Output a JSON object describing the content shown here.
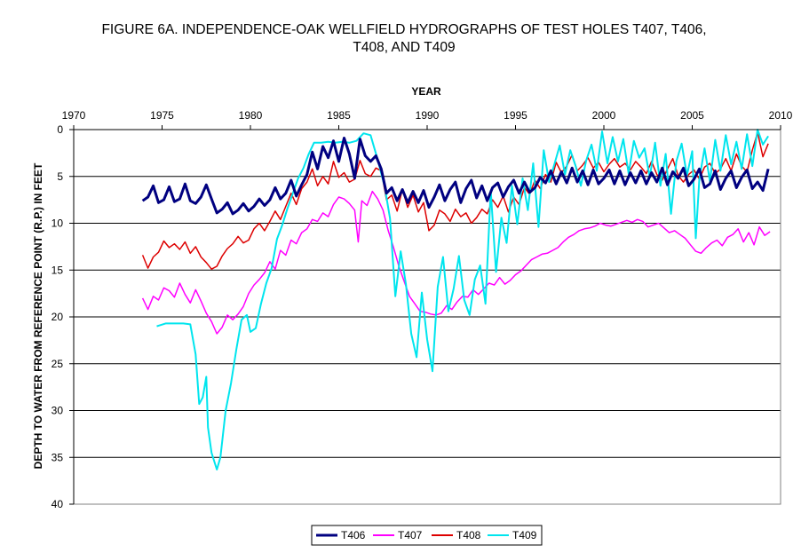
{
  "chart_data": {
    "type": "line",
    "title_lines": [
      "FIGURE 6A. INDEPENDENCE-OAK WELLFIELD HYDROGRAPHS OF TEST HOLES T407, T406,",
      "T408, AND T409"
    ],
    "xlabel": "YEAR",
    "ylabel": "DEPTH TO WATER FROM REFERENCE POINT (R.P.) IN FEET",
    "xlim": [
      1970,
      2010
    ],
    "ylim": [
      0,
      40
    ],
    "y_inverted": true,
    "x_axis_position": "top",
    "grid": "horizontal",
    "legend_position": "bottom",
    "x_ticks": [
      "1970",
      "1975",
      "1980",
      "1985",
      "1990",
      "1995",
      "2000",
      "2005",
      "2010"
    ],
    "y_ticks": [
      "0",
      "5",
      "10",
      "15",
      "20",
      "25",
      "30",
      "35",
      "40"
    ],
    "series": [
      {
        "name": "T406",
        "color": "#000080",
        "x": [
          1973.9,
          1974.2,
          1974.5,
          1974.8,
          1975.1,
          1975.4,
          1975.7,
          1976,
          1976.3,
          1976.6,
          1976.9,
          1977.2,
          1977.5,
          1977.8,
          1978.1,
          1978.4,
          1978.7,
          1979,
          1979.3,
          1979.6,
          1979.9,
          1980.2,
          1980.5,
          1980.8,
          1981.1,
          1981.4,
          1981.7,
          1982,
          1982.3,
          1982.6,
          1982.9,
          1983.2,
          1983.5,
          1983.8,
          1984.1,
          1984.4,
          1984.7,
          1985,
          1985.3,
          1985.6,
          1985.9,
          1986.2,
          1986.5,
          1986.8,
          1987.1,
          1987.4,
          1987.7,
          1988,
          1988.3,
          1988.6,
          1988.9,
          1989.2,
          1989.5,
          1989.8,
          1990.1,
          1990.4,
          1990.7,
          1991,
          1991.3,
          1991.6,
          1991.9,
          1992.2,
          1992.5,
          1992.8,
          1993.1,
          1993.4,
          1993.7,
          1994,
          1994.3,
          1994.6,
          1994.9,
          1995.2,
          1995.5,
          1995.8,
          1996.1,
          1996.4,
          1996.7,
          1997,
          1997.3,
          1997.6,
          1997.9,
          1998.2,
          1998.5,
          1998.8,
          1999.1,
          1999.4,
          1999.7,
          2000,
          2000.3,
          2000.6,
          2000.9,
          2001.2,
          2001.5,
          2001.8,
          2002.1,
          2002.4,
          2002.7,
          2003,
          2003.3,
          2003.6,
          2003.9,
          2004.2,
          2004.5,
          2004.8,
          2005.1,
          2005.4,
          2005.7,
          2006,
          2006.3,
          2006.6,
          2006.9,
          2007.2,
          2007.5,
          2007.8,
          2008.1,
          2008.4,
          2008.7,
          2009,
          2009.3
        ],
        "values": [
          7.6,
          7.2,
          6.0,
          7.8,
          7.5,
          6.1,
          7.7,
          7.4,
          5.8,
          7.6,
          7.9,
          7.2,
          5.9,
          7.4,
          8.9,
          8.5,
          7.8,
          9.0,
          8.6,
          7.9,
          8.7,
          8.2,
          7.4,
          8.1,
          7.5,
          6.2,
          7.4,
          6.8,
          5.4,
          7.1,
          5.9,
          4.8,
          2.4,
          4.2,
          1.8,
          3.0,
          1.2,
          3.4,
          0.9,
          2.6,
          5.2,
          1.0,
          2.8,
          3.4,
          2.8,
          4.2,
          6.8,
          6.2,
          7.6,
          6.4,
          7.8,
          6.6,
          7.8,
          6.5,
          8.3,
          7.2,
          5.9,
          7.6,
          6.4,
          5.6,
          7.8,
          6.3,
          5.4,
          7.3,
          6.0,
          7.6,
          6.2,
          5.7,
          7.2,
          6.1,
          5.4,
          6.8,
          5.6,
          6.7,
          6.2,
          5.1,
          5.7,
          4.4,
          5.8,
          4.5,
          5.7,
          4.1,
          5.6,
          4.4,
          5.9,
          4.3,
          5.8,
          5.2,
          4.3,
          5.8,
          4.4,
          5.9,
          4.6,
          5.7,
          4.4,
          5.8,
          4.6,
          5.6,
          4.1,
          5.9,
          4.5,
          5.2,
          4.1,
          6.0,
          5.3,
          4.2,
          6.2,
          5.8,
          4.4,
          6.4,
          5.2,
          4.4,
          6.2,
          5.1,
          4.3,
          6.3,
          5.6,
          6.5,
          4.2
        ]
      },
      {
        "name": "T407",
        "color": "#ff00ff",
        "x": [
          1973.9,
          1974.2,
          1974.5,
          1974.8,
          1975.1,
          1975.4,
          1975.7,
          1976,
          1976.3,
          1976.6,
          1976.9,
          1977.2,
          1977.5,
          1977.8,
          1978.1,
          1978.4,
          1978.7,
          1979,
          1979.3,
          1979.6,
          1979.9,
          1980.2,
          1980.5,
          1980.8,
          1981.1,
          1981.4,
          1981.7,
          1982,
          1982.3,
          1982.6,
          1982.9,
          1983.2,
          1983.5,
          1983.8,
          1984.1,
          1984.4,
          1984.7,
          1985,
          1985.3,
          1985.6,
          1985.9,
          1986.1,
          1986.3,
          1986.6,
          1986.9,
          1987.2,
          1987.5,
          1987.8,
          1988.1,
          1988.4,
          1988.7,
          1989,
          1989.3,
          1989.6,
          1989.9,
          1990.2,
          1990.5,
          1990.8,
          1991.1,
          1991.4,
          1991.7,
          1992,
          1992.3,
          1992.6,
          1992.9,
          1993.2,
          1993.5,
          1993.8,
          1994.1,
          1994.4,
          1994.7,
          1995,
          1995.3,
          1995.6,
          1995.9,
          1996.2,
          1996.5,
          1996.8,
          1997.1,
          1997.4,
          1997.7,
          1998,
          1998.3,
          1998.6,
          1998.9,
          1999.2,
          1999.5,
          1999.8,
          2000.1,
          2000.4,
          2000.7,
          2001,
          2001.3,
          2001.6,
          2001.9,
          2002.2,
          2002.5,
          2002.8,
          2003.1,
          2003.4,
          2003.7,
          2004,
          2004.3,
          2004.6,
          2004.9,
          2005.2,
          2005.5,
          2005.8,
          2006.1,
          2006.4,
          2006.7,
          2007,
          2007.3,
          2007.6,
          2007.9,
          2008.2,
          2008.5,
          2008.8,
          2009.1,
          2009.4
        ],
        "values": [
          18.0,
          19.2,
          17.8,
          18.2,
          16.9,
          17.2,
          17.9,
          16.4,
          17.6,
          18.5,
          17.1,
          18.3,
          19.6,
          20.5,
          21.8,
          21.1,
          19.8,
          20.3,
          19.7,
          18.9,
          17.5,
          16.6,
          16.0,
          15.3,
          14.1,
          14.9,
          12.9,
          13.4,
          11.8,
          12.2,
          11.0,
          10.6,
          9.6,
          9.8,
          8.9,
          9.3,
          8.0,
          7.2,
          7.4,
          7.9,
          8.6,
          12.0,
          7.6,
          8.1,
          6.6,
          7.4,
          8.6,
          10.8,
          12.6,
          14.6,
          16.2,
          17.8,
          18.6,
          19.4,
          19.5,
          19.7,
          19.8,
          19.6,
          18.8,
          19.2,
          18.4,
          17.8,
          17.9,
          17.1,
          17.6,
          17.0,
          16.4,
          16.6,
          15.8,
          16.5,
          16.1,
          15.5,
          15.1,
          14.5,
          13.9,
          13.6,
          13.3,
          13.2,
          12.9,
          12.6,
          12.0,
          11.5,
          11.2,
          10.8,
          10.6,
          10.5,
          10.3,
          10.0,
          10.2,
          10.3,
          10.1,
          9.9,
          9.7,
          9.9,
          9.6,
          9.8,
          10.4,
          10.2,
          10.0,
          10.5,
          11.0,
          10.8,
          11.2,
          11.6,
          12.3,
          13.0,
          13.2,
          12.6,
          12.1,
          11.8,
          12.4,
          11.5,
          11.2,
          10.6,
          12.0,
          11.0,
          12.3,
          10.4,
          11.3,
          10.9
        ]
      },
      {
        "name": "T408",
        "color": "#dd0000",
        "x": [
          1973.9,
          1974.2,
          1974.5,
          1974.8,
          1975.1,
          1975.4,
          1975.7,
          1976,
          1976.3,
          1976.6,
          1976.9,
          1977.2,
          1977.5,
          1977.8,
          1978.1,
          1978.4,
          1978.7,
          1979,
          1979.3,
          1979.6,
          1979.9,
          1980.2,
          1980.5,
          1980.8,
          1981.1,
          1981.4,
          1981.7,
          1982,
          1982.3,
          1982.6,
          1982.9,
          1983.2,
          1983.5,
          1983.8,
          1984.1,
          1984.4,
          1984.7,
          1985,
          1985.3,
          1985.6,
          1985.9,
          1986.2,
          1986.5,
          1986.8,
          1987.1,
          1987.4,
          1987.7,
          1988,
          1988.3,
          1988.6,
          1988.9,
          1989.2,
          1989.5,
          1989.8,
          1990.1,
          1990.4,
          1990.7,
          1991,
          1991.3,
          1991.6,
          1991.9,
          1992.2,
          1992.5,
          1992.8,
          1993.1,
          1993.4,
          1993.7,
          1994,
          1994.3,
          1994.6,
          1994.9,
          1995.2,
          1995.5,
          1995.8,
          1996.1,
          1996.4,
          1996.7,
          1997,
          1997.3,
          1997.6,
          1997.9,
          1998.2,
          1998.5,
          1998.8,
          1999.1,
          1999.4,
          1999.7,
          2000,
          2000.3,
          2000.6,
          2000.9,
          2001.2,
          2001.5,
          2001.8,
          2002.1,
          2002.4,
          2002.7,
          2003,
          2003.3,
          2003.6,
          2003.9,
          2004.2,
          2004.5,
          2004.8,
          2005.1,
          2005.4,
          2005.7,
          2006,
          2006.3,
          2006.6,
          2006.9,
          2007.2,
          2007.5,
          2007.8,
          2008.1,
          2008.4,
          2008.7,
          2009,
          2009.3
        ],
        "values": [
          13.4,
          14.8,
          13.6,
          13.1,
          11.9,
          12.6,
          12.2,
          12.8,
          12.0,
          13.2,
          12.5,
          13.6,
          14.2,
          14.9,
          14.6,
          13.5,
          12.7,
          12.2,
          11.4,
          12.1,
          11.8,
          10.6,
          10.0,
          10.8,
          9.8,
          8.7,
          9.6,
          8.2,
          6.8,
          8.0,
          6.3,
          5.6,
          4.2,
          6.0,
          5.0,
          5.8,
          3.4,
          5.1,
          4.6,
          5.6,
          5.3,
          3.3,
          4.7,
          5.0,
          4.1,
          4.4,
          7.5,
          7.0,
          8.7,
          6.4,
          8.3,
          7.0,
          8.8,
          7.8,
          10.8,
          10.2,
          8.6,
          9.0,
          9.8,
          8.5,
          9.3,
          8.9,
          10.0,
          9.4,
          8.5,
          9.0,
          7.5,
          8.3,
          7.1,
          8.8,
          7.2,
          8.0,
          6.2,
          6.9,
          5.4,
          6.3,
          4.8,
          5.6,
          3.5,
          4.6,
          3.9,
          2.7,
          4.4,
          3.8,
          3.0,
          4.1,
          3.5,
          4.5,
          3.7,
          3.1,
          4.0,
          3.6,
          4.3,
          3.4,
          4.0,
          4.7,
          3.4,
          4.8,
          5.4,
          4.2,
          3.1,
          4.9,
          5.6,
          4.8,
          4.3,
          5.3,
          4.0,
          3.6,
          4.7,
          4.2,
          3.1,
          4.4,
          2.6,
          3.9,
          4.5,
          2.2,
          0.3,
          2.9,
          1.5
        ]
      },
      {
        "name": "T409",
        "color": "#00e5ee",
        "x": [
          1974.7,
          1975.2,
          1975.7,
          1976.2,
          1976.6,
          1976.9,
          1977.1,
          1977.3,
          1977.5,
          1977.6,
          1977.8,
          1978.1,
          1978.3,
          1978.6,
          1978.9,
          1979.2,
          1979.5,
          1979.8,
          1980,
          1980.3,
          1980.6,
          1980.9,
          1981.2,
          1981.5,
          1981.8,
          1982.1,
          1982.4,
          1982.7,
          1983,
          1983.3,
          1983.6,
          1984,
          1984.4,
          1984.8,
          1985.2,
          1985.6,
          1986,
          1986.4,
          1986.8,
          1987.2,
          1987.6,
          1987.9,
          1988.2,
          1988.5,
          1988.8,
          1989.1,
          1989.4,
          1989.7,
          1990,
          1990.3,
          1990.6,
          1990.9,
          1991.2,
          1991.5,
          1991.8,
          1992.1,
          1992.4,
          1992.7,
          1993,
          1993.3,
          1993.6,
          1993.9,
          1994.2,
          1994.5,
          1994.8,
          1995.1,
          1995.4,
          1995.7,
          1996,
          1996.3,
          1996.6,
          1996.9,
          1997.2,
          1997.5,
          1997.8,
          1998.1,
          1998.4,
          1998.7,
          1999,
          1999.3,
          1999.6,
          1999.9,
          2000.2,
          2000.5,
          2000.8,
          2001.1,
          2001.4,
          2001.7,
          2002,
          2002.3,
          2002.6,
          2002.9,
          2003.2,
          2003.5,
          2003.8,
          2004.1,
          2004.4,
          2004.7,
          2005,
          2005.2,
          2005.4,
          2005.7,
          2006,
          2006.3,
          2006.6,
          2006.9,
          2007.2,
          2007.5,
          2007.8,
          2008.1,
          2008.4,
          2008.7,
          2009,
          2009.3
        ],
        "values": [
          21.0,
          20.7,
          20.7,
          20.7,
          20.8,
          24.0,
          29.3,
          28.6,
          26.4,
          31.8,
          34.5,
          36.3,
          35.0,
          30.0,
          27.1,
          23.5,
          20.3,
          19.8,
          21.6,
          21.2,
          18.6,
          16.4,
          14.8,
          11.7,
          10.2,
          8.4,
          6.8,
          5.2,
          4.1,
          2.6,
          1.4,
          1.4,
          1.3,
          1.4,
          1.3,
          1.4,
          1.2,
          0.4,
          0.6,
          3.2,
          6.1,
          9.5,
          17.8,
          13.0,
          16.5,
          21.8,
          24.3,
          17.4,
          22.4,
          25.8,
          16.8,
          13.6,
          19.4,
          17.0,
          13.5,
          18.2,
          19.8,
          16.0,
          14.5,
          18.6,
          6.5,
          15.2,
          9.4,
          12.1,
          6.0,
          10.1,
          5.2,
          8.6,
          3.6,
          10.4,
          2.2,
          5.6,
          3.7,
          1.7,
          4.8,
          2.2,
          3.9,
          6.0,
          3.3,
          1.6,
          4.4,
          0.2,
          3.6,
          0.8,
          3.4,
          1.0,
          4.7,
          1.2,
          3.0,
          2.0,
          5.1,
          1.4,
          6.0,
          2.6,
          9.0,
          3.4,
          1.5,
          4.9,
          2.3,
          11.6,
          5.3,
          2.0,
          5.5,
          1.1,
          4.4,
          0.6,
          3.7,
          1.3,
          4.2,
          0.5,
          3.9,
          0.0,
          1.6,
          0.7
        ]
      }
    ]
  }
}
